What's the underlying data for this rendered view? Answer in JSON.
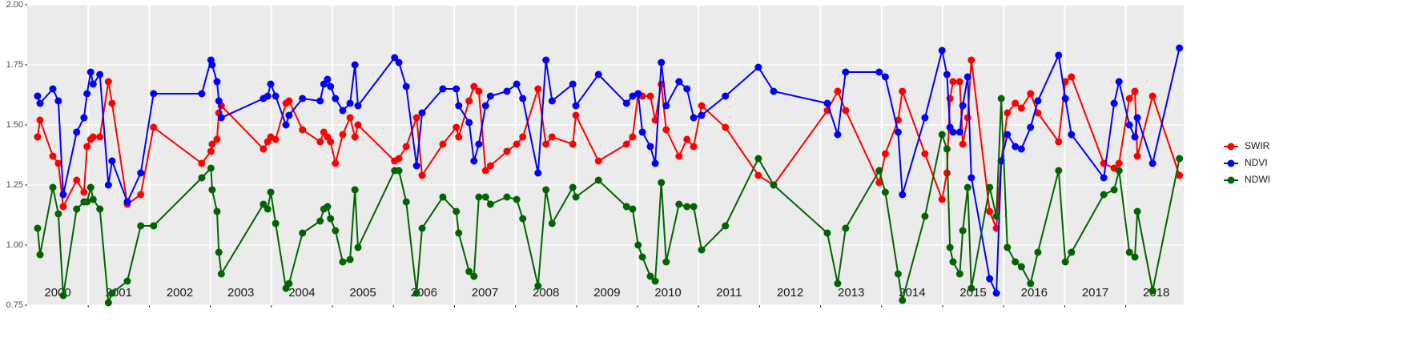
{
  "chart_data": {
    "type": "line",
    "x": [
      2000.17,
      2000.21,
      2000.42,
      2000.51,
      2000.59,
      2000.81,
      2000.93,
      2000.98,
      2001.04,
      2001.08,
      2001.19,
      2001.33,
      2001.39,
      2001.64,
      2001.86,
      2002.07,
      2002.86,
      2003.01,
      2003.03,
      2003.11,
      2003.14,
      2003.18,
      2003.87,
      2003.94,
      2003.99,
      2004.07,
      2004.24,
      2004.29,
      2004.51,
      2004.8,
      2004.86,
      2004.92,
      2004.97,
      2005.05,
      2005.17,
      2005.29,
      2005.37,
      2005.42,
      2006.02,
      2006.09,
      2006.21,
      2006.38,
      2006.47,
      2006.81,
      2007.03,
      2007.07,
      2007.24,
      2007.32,
      2007.4,
      2007.51,
      2007.59,
      2007.86,
      2008.02,
      2008.12,
      2008.37,
      2008.5,
      2008.6,
      2008.94,
      2008.99,
      2009.36,
      2009.82,
      2009.92,
      2010.01,
      2010.08,
      2010.21,
      2010.29,
      2010.39,
      2010.47,
      2010.68,
      2010.81,
      2010.92,
      2011.05,
      2011.44,
      2011.98,
      2012.23,
      2013.11,
      2013.28,
      2013.41,
      2013.96,
      2014.06,
      2014.27,
      2014.34,
      2014.71,
      2014.99,
      2015.07,
      2015.12,
      2015.17,
      2015.28,
      2015.33,
      2015.41,
      2015.47,
      2015.77,
      2015.88,
      2015.96,
      2016.06,
      2016.19,
      2016.29,
      2016.44,
      2016.56,
      2016.9,
      2017.01,
      2017.11,
      2017.64,
      2017.81,
      2017.89,
      2018.06,
      2018.15,
      2018.19,
      2018.44,
      2018.88
    ],
    "series": [
      {
        "name": "SWIR",
        "color": "#ff0000",
        "values": [
          1.45,
          1.52,
          1.37,
          1.34,
          1.16,
          1.27,
          1.22,
          1.41,
          1.44,
          1.45,
          1.45,
          1.68,
          1.59,
          1.17,
          1.21,
          1.49,
          1.34,
          1.39,
          1.42,
          1.44,
          1.55,
          1.58,
          1.4,
          1.43,
          1.45,
          1.44,
          1.59,
          1.6,
          1.48,
          1.43,
          1.47,
          1.45,
          1.43,
          1.34,
          1.46,
          1.53,
          1.45,
          1.5,
          1.35,
          1.36,
          1.41,
          1.53,
          1.29,
          1.42,
          1.49,
          1.45,
          1.6,
          1.66,
          1.64,
          1.31,
          1.33,
          1.39,
          1.42,
          1.45,
          1.65,
          1.42,
          1.45,
          1.42,
          1.54,
          1.35,
          1.42,
          1.45,
          1.63,
          1.62,
          1.62,
          1.52,
          1.67,
          1.48,
          1.37,
          1.44,
          1.41,
          1.58,
          1.49,
          1.29,
          1.25,
          1.56,
          1.64,
          1.56,
          1.26,
          1.38,
          1.52,
          1.64,
          1.38,
          1.19,
          1.3,
          1.61,
          1.68,
          1.68,
          1.42,
          1.53,
          1.77,
          1.14,
          1.07,
          1.35,
          1.55,
          1.59,
          1.57,
          1.63,
          1.55,
          1.43,
          1.68,
          1.7,
          1.34,
          1.32,
          1.34,
          1.61,
          1.64,
          1.37,
          1.62,
          1.29
        ]
      },
      {
        "name": "NDVI",
        "color": "#0000ff",
        "values": [
          1.62,
          1.59,
          1.65,
          1.6,
          1.21,
          1.47,
          1.53,
          1.63,
          1.72,
          1.67,
          1.71,
          1.25,
          1.35,
          1.18,
          1.3,
          1.63,
          1.63,
          1.77,
          1.75,
          1.68,
          1.6,
          1.53,
          1.61,
          1.62,
          1.67,
          1.62,
          1.5,
          1.54,
          1.61,
          1.6,
          1.67,
          1.69,
          1.66,
          1.61,
          1.56,
          1.59,
          1.75,
          1.58,
          1.78,
          1.76,
          1.66,
          1.33,
          1.55,
          1.65,
          1.65,
          1.58,
          1.51,
          1.35,
          1.42,
          1.58,
          1.62,
          1.64,
          1.67,
          1.61,
          1.3,
          1.77,
          1.6,
          1.67,
          1.58,
          1.71,
          1.59,
          1.62,
          1.63,
          1.47,
          1.41,
          1.34,
          1.76,
          1.58,
          1.68,
          1.65,
          1.53,
          1.54,
          1.62,
          1.74,
          1.64,
          1.59,
          1.46,
          1.72,
          1.72,
          1.7,
          1.47,
          1.21,
          1.53,
          1.81,
          1.71,
          1.49,
          1.47,
          1.47,
          1.58,
          1.7,
          1.28,
          0.86,
          0.8,
          1.35,
          1.46,
          1.41,
          1.4,
          1.49,
          1.6,
          1.79,
          1.61,
          1.46,
          1.28,
          1.59,
          1.68,
          1.5,
          1.45,
          1.53,
          1.34,
          1.82
        ]
      },
      {
        "name": "NDWI",
        "color": "#006400",
        "values": [
          1.07,
          0.96,
          1.24,
          1.13,
          0.79,
          1.15,
          1.18,
          1.18,
          1.24,
          1.19,
          1.15,
          0.76,
          0.8,
          0.85,
          1.08,
          1.08,
          1.28,
          1.32,
          1.23,
          1.14,
          0.97,
          0.88,
          1.17,
          1.15,
          1.22,
          1.09,
          0.82,
          0.84,
          1.05,
          1.1,
          1.15,
          1.16,
          1.11,
          1.06,
          0.93,
          0.94,
          1.23,
          0.99,
          1.31,
          1.31,
          1.18,
          0.8,
          1.07,
          1.2,
          1.14,
          1.05,
          0.89,
          0.87,
          1.2,
          1.2,
          1.17,
          1.2,
          1.19,
          1.11,
          0.83,
          1.23,
          1.09,
          1.24,
          1.2,
          1.27,
          1.16,
          1.15,
          1.0,
          0.95,
          0.87,
          0.85,
          1.26,
          0.93,
          1.17,
          1.16,
          1.16,
          0.98,
          1.08,
          1.36,
          1.25,
          1.05,
          0.84,
          1.07,
          1.31,
          1.22,
          0.88,
          0.77,
          1.12,
          1.46,
          1.4,
          0.99,
          0.93,
          0.88,
          1.06,
          1.24,
          0.82,
          1.24,
          1.12,
          1.61,
          0.99,
          0.93,
          0.91,
          0.84,
          0.97,
          1.31,
          0.93,
          0.97,
          1.21,
          1.23,
          1.31,
          0.97,
          0.95,
          1.14,
          0.81,
          1.36
        ]
      }
    ],
    "xlim": [
      2000,
      2018.95
    ],
    "xticks": [
      2001,
      2002,
      2003,
      2004,
      2005,
      2006,
      2007,
      2008,
      2009,
      2010,
      2011,
      2012,
      2013,
      2014,
      2015,
      2016,
      2017,
      2018
    ],
    "ylim": [
      0.75,
      2.0
    ],
    "yticks": [
      {
        "value": 0.75,
        "label": "0.75"
      },
      {
        "value": 1.0,
        "label": "1.00"
      },
      {
        "value": 1.25,
        "label": "1.25"
      },
      {
        "value": 1.5,
        "label": "1.50"
      },
      {
        "value": 1.75,
        "label": "1.75"
      },
      {
        "value": 2.0,
        "label": "2.00"
      }
    ],
    "year_labels": [
      {
        "x": 2000.5,
        "text": "2000"
      },
      {
        "x": 2001.5,
        "text": "2001"
      },
      {
        "x": 2002.5,
        "text": "2002"
      },
      {
        "x": 2003.5,
        "text": "2003"
      },
      {
        "x": 2004.5,
        "text": "2004"
      },
      {
        "x": 2005.5,
        "text": "2005"
      },
      {
        "x": 2006.5,
        "text": "2006"
      },
      {
        "x": 2007.5,
        "text": "2007"
      },
      {
        "x": 2008.5,
        "text": "2008"
      },
      {
        "x": 2009.5,
        "text": "2009"
      },
      {
        "x": 2010.5,
        "text": "2010"
      },
      {
        "x": 2011.5,
        "text": "2011"
      },
      {
        "x": 2012.5,
        "text": "2012"
      },
      {
        "x": 2013.5,
        "text": "2013"
      },
      {
        "x": 2014.5,
        "text": "2014"
      },
      {
        "x": 2015.5,
        "text": "2015"
      },
      {
        "x": 2016.5,
        "text": "2016"
      },
      {
        "x": 2017.5,
        "text": "2017"
      },
      {
        "x": 2018.5,
        "text": "2018"
      }
    ],
    "grid": true,
    "legend": "right"
  }
}
